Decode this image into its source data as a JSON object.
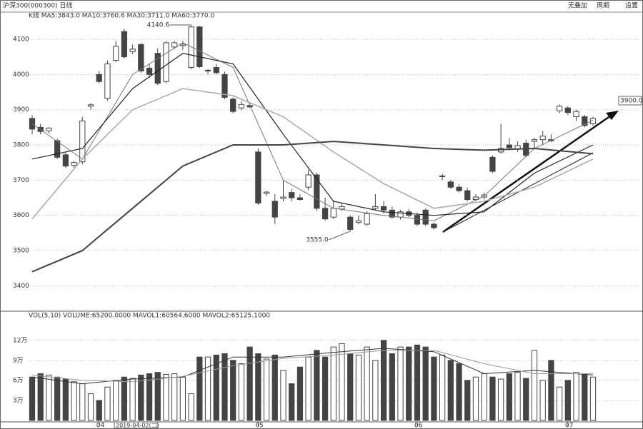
{
  "chart_data": {
    "type": "candlestick",
    "title": "沪深300(000300) 日线",
    "indicator_header": "K线 MA5:3843.0 MA10:3760.6 MA30:3711.0 MA60:3770.0",
    "toolbar": [
      "无叠加",
      "周期",
      "设置"
    ],
    "ylim": [
      3340,
      4175
    ],
    "yticks": [
      3400,
      3500,
      3600,
      3700,
      3800,
      3900,
      4000,
      4100
    ],
    "grid": true,
    "up_color": "#ffffff",
    "down_color": "#444444",
    "candles": [
      [
        3875,
        3885,
        3830,
        3845
      ],
      [
        3850,
        3860,
        3830,
        3838
      ],
      [
        3840,
        3850,
        3832,
        3848
      ],
      [
        3812,
        3818,
        3760,
        3765
      ],
      [
        3772,
        3780,
        3735,
        3740
      ],
      [
        3742,
        3755,
        3735,
        3750
      ],
      [
        3752,
        3880,
        3745,
        3868
      ],
      [
        3910,
        3918,
        3900,
        3914
      ],
      [
        4000,
        4010,
        3975,
        3980
      ],
      [
        3932,
        4040,
        3925,
        4030
      ],
      [
        4040,
        4095,
        4035,
        4080
      ],
      [
        4122,
        4130,
        4045,
        4050
      ],
      [
        4065,
        4085,
        4058,
        4072
      ],
      [
        4085,
        4090,
        4005,
        4010
      ],
      [
        4018,
        4030,
        3990,
        4000
      ],
      [
        4060,
        4075,
        3970,
        3975
      ],
      [
        3980,
        4095,
        3975,
        4090
      ],
      [
        4078,
        4095,
        4072,
        4090
      ],
      [
        4082,
        4095,
        4070,
        4086
      ],
      [
        4020,
        4140.6,
        4015,
        4135
      ],
      [
        4135,
        4138,
        4018,
        4022
      ],
      [
        4010,
        4016,
        4000,
        4012
      ],
      [
        4020,
        4030,
        4000,
        4005
      ],
      [
        4000,
        4008,
        3930,
        3935
      ],
      [
        3930,
        3935,
        3890,
        3895
      ],
      [
        3905,
        3925,
        3898,
        3915
      ],
      [
        3912,
        3920,
        3905,
        3908
      ],
      [
        3780,
        3790,
        3630,
        3635
      ],
      [
        3662,
        3670,
        3655,
        3666
      ],
      [
        3640,
        3660,
        3575,
        3595
      ],
      [
        3648,
        3700,
        3640,
        3652
      ],
      [
        3665,
        3675,
        3640,
        3650
      ],
      [
        3650,
        3660,
        3642,
        3645
      ],
      [
        3680,
        3730,
        3672,
        3715
      ],
      [
        3715,
        3722,
        3612,
        3620
      ],
      [
        3620,
        3650,
        3585,
        3590
      ],
      [
        3595,
        3640,
        3590,
        3620
      ],
      [
        3618,
        3635,
        3612,
        3625
      ],
      [
        3595,
        3600,
        3555.0,
        3560
      ],
      [
        3580,
        3600,
        3575,
        3585
      ],
      [
        3575,
        3612,
        3570,
        3605
      ],
      [
        3620,
        3660,
        3615,
        3625
      ],
      [
        3625,
        3640,
        3605,
        3615
      ],
      [
        3615,
        3625,
        3590,
        3595
      ],
      [
        3595,
        3615,
        3588,
        3610
      ],
      [
        3610,
        3618,
        3595,
        3600
      ],
      [
        3600,
        3608,
        3570,
        3575
      ],
      [
        3615,
        3620,
        3570,
        3575
      ],
      [
        3575,
        3580,
        3560,
        3565
      ],
      [
        3710,
        3718,
        3700,
        3712
      ],
      [
        3695,
        3700,
        3675,
        3680
      ],
      [
        3680,
        3688,
        3665,
        3670
      ],
      [
        3670,
        3678,
        3640,
        3645
      ],
      [
        3645,
        3660,
        3640,
        3652
      ],
      [
        3652,
        3665,
        3645,
        3658
      ],
      [
        3765,
        3770,
        3720,
        3725
      ],
      [
        3780,
        3860,
        3775,
        3790
      ],
      [
        3800,
        3820,
        3785,
        3792
      ],
      [
        3788,
        3810,
        3780,
        3798
      ],
      [
        3805,
        3815,
        3765,
        3770
      ],
      [
        3810,
        3820,
        3790,
        3815
      ],
      [
        3815,
        3840,
        3800,
        3825
      ],
      [
        3815,
        3830,
        3808,
        3812
      ],
      [
        3897,
        3915,
        3890,
        3910
      ],
      [
        3905,
        3910,
        3885,
        3892
      ],
      [
        3880,
        3900,
        3868,
        3895
      ],
      [
        3880,
        3885,
        3850,
        3855
      ],
      [
        3860,
        3880,
        3855,
        3875
      ]
    ],
    "ma_x": [
      0,
      6,
      12,
      18,
      24,
      30,
      36,
      42,
      48,
      54,
      60,
      67
    ],
    "series": [
      {
        "name": "MA5",
        "color": "#777777",
        "width": 1,
        "values": [
          3860,
          3760,
          4000,
          4090,
          4020,
          3700,
          3620,
          3600,
          3585,
          3655,
          3790,
          3870
        ]
      },
      {
        "name": "MA10",
        "color": "#222222",
        "width": 1.2,
        "values": [
          3760,
          3790,
          3960,
          4060,
          4030,
          3830,
          3640,
          3610,
          3600,
          3610,
          3720,
          3800
        ]
      },
      {
        "name": "MA30",
        "color": "#aaaaaa",
        "width": 1.5,
        "values": [
          3590,
          3760,
          3900,
          3960,
          3940,
          3880,
          3780,
          3690,
          3620,
          3640,
          3680,
          3760
        ]
      },
      {
        "name": "MA60",
        "color": "#444444",
        "width": 2,
        "values": [
          3440,
          3500,
          3620,
          3740,
          3800,
          3800,
          3810,
          3800,
          3790,
          3785,
          3790,
          3775
        ]
      }
    ],
    "annotations": [
      {
        "index": 19,
        "label": "4140.6"
      },
      {
        "index": 38,
        "label": "3555.0"
      }
    ],
    "right_label": "3900.0",
    "xticks": [
      {
        "value": 8,
        "label": "04"
      },
      {
        "value": 27,
        "label": "05"
      },
      {
        "value": 46,
        "label": "06"
      },
      {
        "value": 64,
        "label": "07"
      }
    ],
    "cursor_label": "2019-04-02(二)",
    "volume": {
      "header": "VOL(5,10) VOLUME:65200.0000 MAVOL1:60564.6000 MAVOL2:65125.1000",
      "ylim": [
        0,
        15.4
      ],
      "yticks": [
        {
          "value": 3,
          "label": "3万"
        },
        {
          "value": 6,
          "label": "6万"
        },
        {
          "value": 9,
          "label": "9万"
        },
        {
          "value": 12,
          "label": "12万"
        }
      ],
      "values": [
        6.5,
        7,
        6.8,
        6.5,
        6.2,
        5.8,
        5.5,
        4,
        3,
        5,
        6,
        6.5,
        6.3,
        6.8,
        7,
        7.2,
        6.9,
        7,
        6.5,
        4,
        9.5,
        9.5,
        9.8,
        10,
        9,
        8.5,
        11,
        10,
        9.2,
        9.8,
        7.5,
        5.5,
        8,
        9.5,
        10.5,
        9.5,
        11,
        11.5,
        10,
        9.8,
        11,
        9,
        12,
        10,
        11,
        11,
        11.3,
        11,
        9.5,
        9.8,
        9,
        8.5,
        6,
        6.5,
        7,
        6.5,
        6.2,
        7,
        7.2,
        6.3,
        10.5,
        6,
        9,
        5,
        6,
        7.2,
        7,
        6.5
      ],
      "series": [
        {
          "name": "MAVOL1",
          "color": "#333333",
          "values": [
            6.5,
            5.5,
            6.2,
            6.5,
            9.5,
            9.5,
            10.2,
            10.8,
            10.3,
            7,
            7.5,
            6.8
          ]
        },
        {
          "name": "MAVOL2",
          "color": "#999999",
          "values": [
            6.8,
            6,
            5.8,
            6.6,
            8.2,
            9.3,
            9.8,
            10.5,
            10.5,
            8.5,
            7,
            7
          ]
        }
      ]
    }
  }
}
